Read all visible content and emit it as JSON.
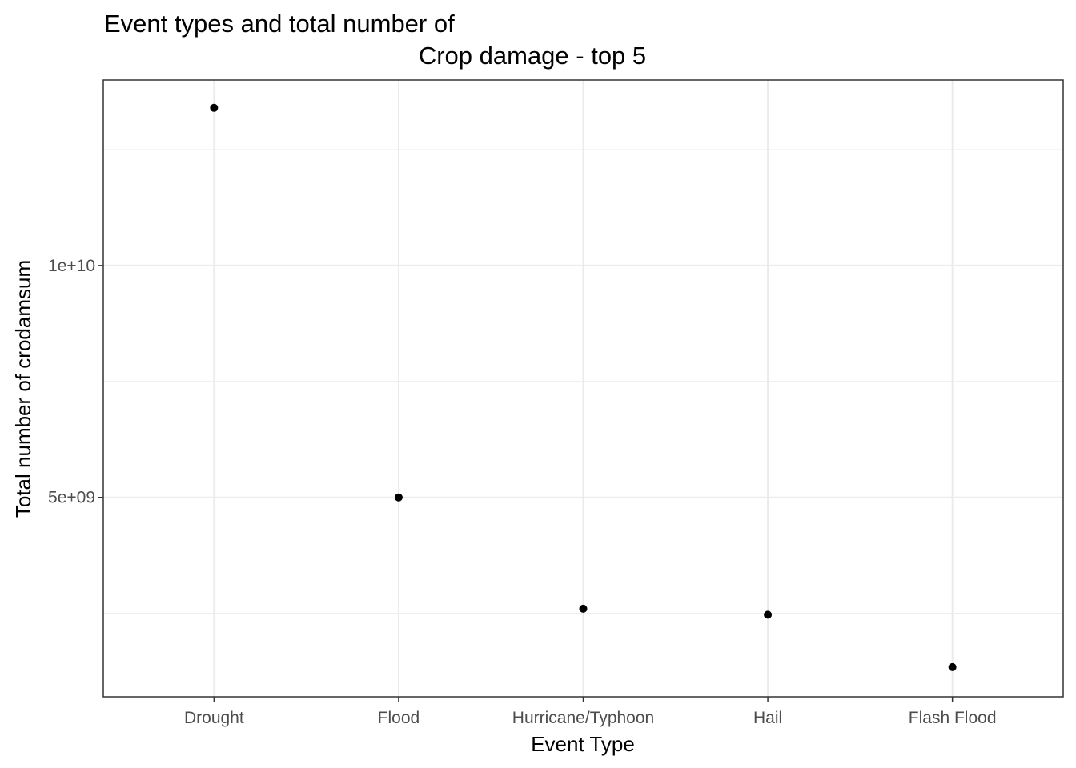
{
  "chart_data": {
    "type": "scatter",
    "title_lines": [
      "Event types and total number of",
      "Crop damage - top 5"
    ],
    "xlabel": "Event Type",
    "ylabel": "Total number of crodamsum",
    "categories": [
      "Drought",
      "Flood",
      "Hurricane/Typhoon",
      "Hail",
      "Flash Flood"
    ],
    "values": [
      13400000000,
      5000000000,
      2600000000,
      2470000000,
      1340000000
    ],
    "yticks": [
      {
        "value": 5000000000,
        "label": "5e+09"
      },
      {
        "value": 10000000000,
        "label": "1e+10"
      }
    ],
    "ylim": [
      700000000,
      14000000000
    ],
    "grid": true,
    "legend": "none",
    "colors": {
      "point": "#000000",
      "grid": "#ebebeb",
      "panel_border": "#333333",
      "tick_text": "#4d4d4d"
    }
  }
}
